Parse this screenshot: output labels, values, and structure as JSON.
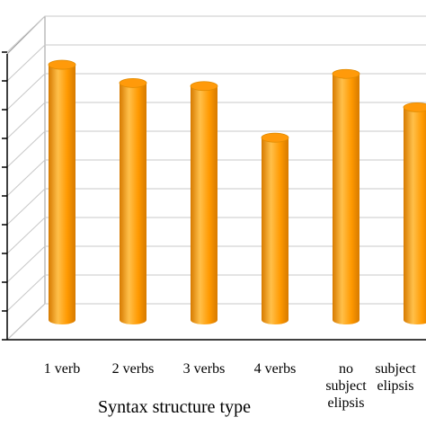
{
  "chart_data": {
    "type": "bar",
    "style": "3d-cylinder",
    "categories": [
      "1 verb",
      "2 verbs",
      "3 verbs",
      "4 verbs",
      "no subject elipsis",
      "subject elipsis"
    ],
    "category_label_lines": [
      [
        "1 verb"
      ],
      [
        "2 verbs"
      ],
      [
        "3 verbs"
      ],
      [
        "4 verbs"
      ],
      [
        "no",
        "subject",
        "elipsis"
      ],
      [
        "subject",
        "elipsis"
      ]
    ],
    "values": [
      0.84,
      0.78,
      0.77,
      0.6,
      0.81,
      0.7
    ],
    "ylim": [
      0,
      1
    ],
    "xlabel": "Syntax structure type",
    "ylabel": "",
    "grid": true,
    "legend": "none",
    "colors": {
      "bar_light": "#ffc04a",
      "bar_mid": "#ff9900",
      "bar_dark": "#d67a00",
      "bar_top": "#ff9a0a",
      "grid": "#c8c8c8",
      "axis": "#000000"
    }
  }
}
